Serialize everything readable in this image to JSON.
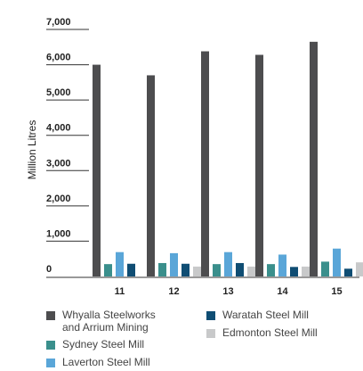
{
  "chart_data": {
    "type": "bar",
    "categories": [
      "11",
      "12",
      "13",
      "14",
      "15"
    ],
    "ylabel": "Million Litres",
    "xlabel": "",
    "title": "",
    "ylim": [
      0,
      7000
    ],
    "yticks": [
      "0",
      "1,000",
      "2,000",
      "3,000",
      "4,000",
      "5,000",
      "6,000",
      "7,000"
    ],
    "grid": false,
    "legend_position": "bottom",
    "series": [
      {
        "name": "Whyalla Steelworks\nand Arrium Mining",
        "color": "#4d4d4f",
        "values": [
          6000,
          5700,
          6380,
          6280,
          6650
        ]
      },
      {
        "name": "Sydney Steel Mill",
        "color": "#3a8f8c",
        "values": [
          350,
          380,
          350,
          350,
          420
        ]
      },
      {
        "name": "Laverton Steel Mill",
        "color": "#5aa6d8",
        "values": [
          690,
          660,
          690,
          620,
          790
        ]
      },
      {
        "name": "Waratah Steel Mill",
        "color": "#0f4d73",
        "values": [
          360,
          360,
          380,
          270,
          220
        ]
      },
      {
        "name": "Edmonton Steel Mill",
        "color": "#c8c9ca",
        "values": [
          0,
          280,
          280,
          280,
          400
        ]
      }
    ],
    "legend_order": [
      0,
      3,
      1,
      4,
      2
    ]
  }
}
